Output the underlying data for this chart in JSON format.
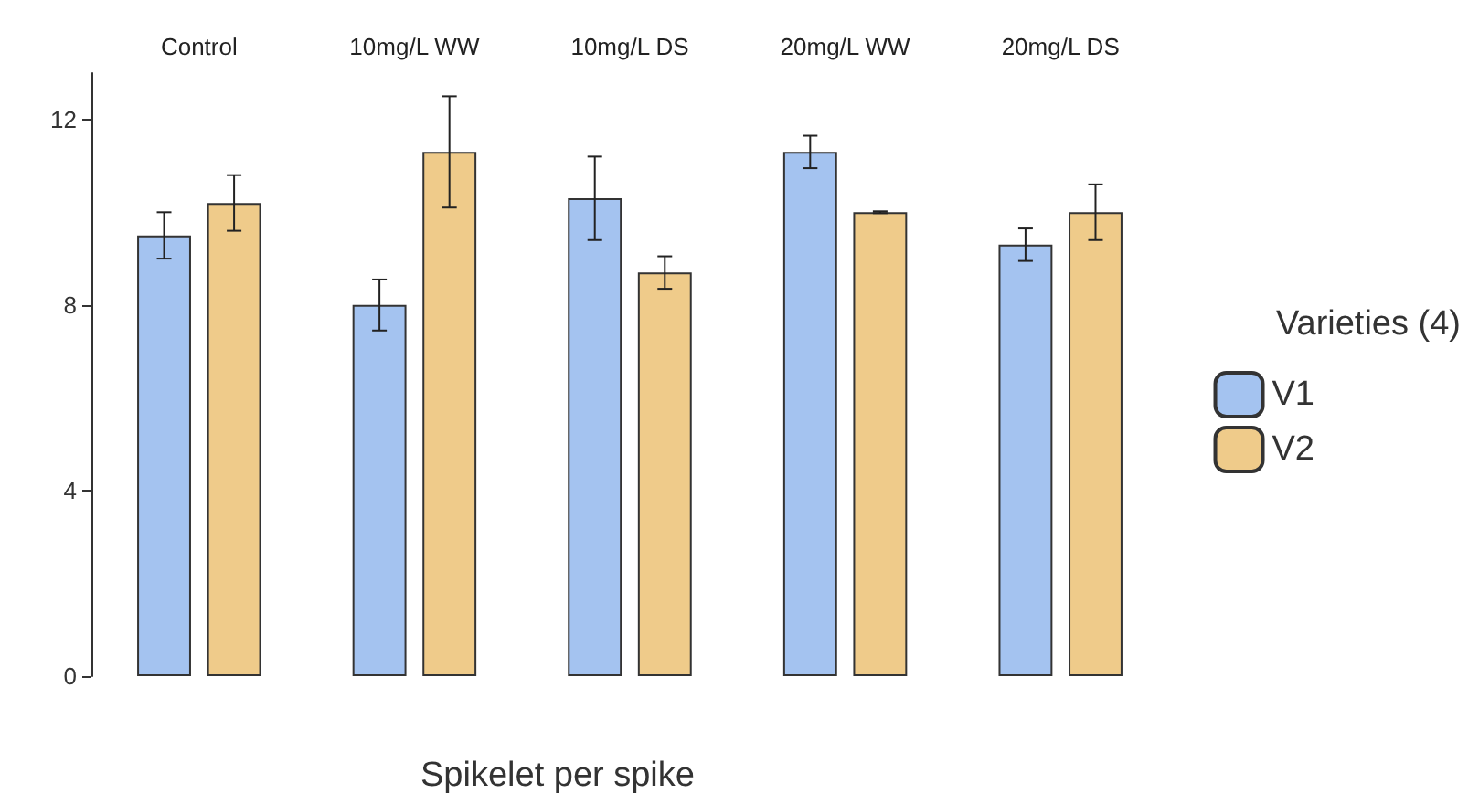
{
  "chart_data": {
    "type": "bar",
    "xlabel": "Spikelet per spike",
    "legend_title": "Varieties (4)",
    "categories": [
      "Control",
      "10mg/L WW",
      "10mg/L DS",
      "20mg/L WW",
      "20mg/L DS"
    ],
    "series": [
      {
        "name": "V1",
        "color": "#a4c3f0",
        "values": [
          9.5,
          8.0,
          10.3,
          11.3,
          9.3
        ],
        "errors": [
          0.5,
          0.55,
          0.9,
          0.35,
          0.35
        ]
      },
      {
        "name": "V2",
        "color": "#efcb8a",
        "values": [
          10.2,
          11.3,
          8.7,
          10.0,
          10.0
        ],
        "errors": [
          0.6,
          1.2,
          0.35,
          0.02,
          0.6
        ]
      }
    ],
    "ylim": [
      0,
      13
    ],
    "yticks": [
      0,
      4,
      8,
      12
    ],
    "grid": false,
    "legend": "right"
  }
}
